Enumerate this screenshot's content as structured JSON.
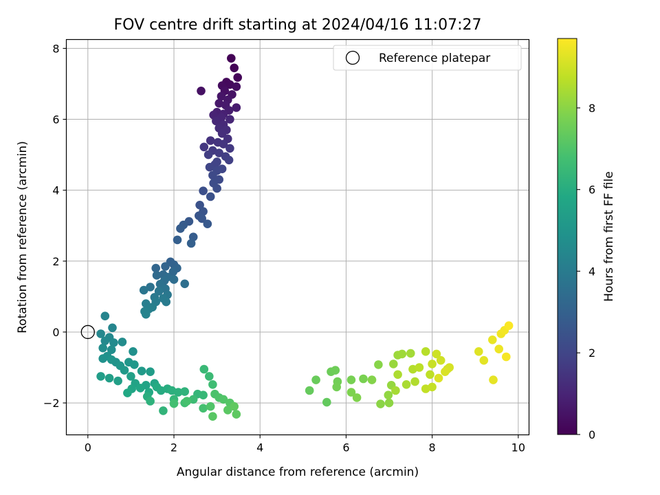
{
  "chart_data": {
    "type": "scatter",
    "title": "FOV centre drift starting at 2024/04/16 11:07:27",
    "xlabel": "Angular distance from reference (arcmin)",
    "ylabel": "Rotation from reference (arcmin)",
    "xlim": [
      -0.5,
      10.25
    ],
    "ylim": [
      -2.9,
      8.25
    ],
    "xticks": [
      0,
      2,
      4,
      6,
      8,
      10
    ],
    "yticks": [
      -2,
      0,
      2,
      4,
      6,
      8
    ],
    "grid": true,
    "legend": {
      "placement": "top-right",
      "entries": [
        "Reference platepar"
      ]
    },
    "reference_point": {
      "x": 0,
      "y": 0
    },
    "colorbar": {
      "label": "Hours from first FF file",
      "cmap": "viridis",
      "range": [
        0,
        9.7
      ],
      "ticks": [
        0,
        2,
        4,
        6,
        8
      ]
    },
    "points": [
      [
        3.33,
        7.72,
        0.05
      ],
      [
        3.4,
        7.45,
        0.1
      ],
      [
        3.48,
        7.18,
        0.15
      ],
      [
        3.22,
        7.05,
        0.2
      ],
      [
        3.3,
        6.98,
        0.25
      ],
      [
        3.12,
        6.95,
        0.3
      ],
      [
        3.45,
        6.92,
        0.35
      ],
      [
        3.18,
        6.8,
        0.4
      ],
      [
        2.63,
        6.8,
        0.45
      ],
      [
        3.35,
        6.7,
        0.5
      ],
      [
        3.1,
        6.65,
        0.55
      ],
      [
        3.25,
        6.55,
        0.6
      ],
      [
        3.05,
        6.45,
        0.65
      ],
      [
        3.2,
        6.4,
        0.7
      ],
      [
        3.45,
        6.33,
        0.75
      ],
      [
        3.28,
        6.25,
        0.8
      ],
      [
        3.0,
        6.2,
        0.85
      ],
      [
        3.15,
        6.15,
        0.9
      ],
      [
        2.92,
        6.12,
        0.95
      ],
      [
        3.1,
        6.05,
        1.0
      ],
      [
        3.3,
        6.0,
        1.05
      ],
      [
        2.98,
        5.95,
        1.1
      ],
      [
        3.15,
        5.85,
        1.15
      ],
      [
        3.05,
        5.75,
        1.2
      ],
      [
        3.22,
        5.7,
        1.25
      ],
      [
        3.12,
        5.6,
        1.3
      ],
      [
        3.25,
        5.45,
        1.35
      ],
      [
        2.85,
        5.4,
        1.4
      ],
      [
        3.02,
        5.35,
        1.45
      ],
      [
        3.15,
        5.3,
        1.5
      ],
      [
        2.7,
        5.22,
        1.55
      ],
      [
        3.3,
        5.18,
        1.6
      ],
      [
        2.9,
        5.12,
        1.65
      ],
      [
        3.05,
        5.05,
        1.7
      ],
      [
        2.8,
        5.0,
        1.75
      ],
      [
        3.2,
        4.95,
        1.8
      ],
      [
        3.28,
        4.85,
        1.85
      ],
      [
        3.0,
        4.8,
        1.9
      ],
      [
        2.95,
        4.72,
        1.95
      ],
      [
        2.83,
        4.65,
        2.0
      ],
      [
        3.12,
        4.6,
        2.05
      ],
      [
        3.0,
        4.55,
        2.1
      ],
      [
        2.9,
        4.42,
        2.15
      ],
      [
        3.05,
        4.3,
        2.2
      ],
      [
        2.92,
        4.2,
        2.25
      ],
      [
        3.0,
        4.05,
        2.3
      ],
      [
        2.68,
        3.98,
        2.35
      ],
      [
        2.85,
        3.82,
        2.4
      ],
      [
        2.6,
        3.58,
        2.45
      ],
      [
        2.68,
        3.4,
        2.5
      ],
      [
        2.58,
        3.28,
        2.55
      ],
      [
        2.65,
        3.2,
        2.6
      ],
      [
        2.35,
        3.12,
        2.65
      ],
      [
        2.78,
        3.05,
        2.7
      ],
      [
        2.22,
        3.02,
        2.75
      ],
      [
        2.15,
        2.92,
        2.8
      ],
      [
        2.45,
        2.68,
        2.85
      ],
      [
        2.08,
        2.6,
        2.9
      ],
      [
        2.4,
        2.5,
        2.95
      ],
      [
        1.92,
        1.98,
        3.0
      ],
      [
        2.0,
        1.9,
        3.05
      ],
      [
        1.8,
        1.85,
        3.1
      ],
      [
        2.07,
        1.8,
        3.15
      ],
      [
        1.58,
        1.8,
        3.2
      ],
      [
        1.98,
        1.7,
        3.25
      ],
      [
        1.75,
        1.62,
        3.3
      ],
      [
        1.6,
        1.6,
        3.35
      ],
      [
        1.85,
        1.55,
        3.4
      ],
      [
        2.0,
        1.48,
        3.45
      ],
      [
        1.78,
        1.45,
        3.5
      ],
      [
        2.25,
        1.36,
        3.55
      ],
      [
        1.68,
        1.35,
        3.6
      ],
      [
        1.45,
        1.27,
        3.65
      ],
      [
        1.8,
        1.22,
        3.7
      ],
      [
        1.3,
        1.18,
        3.75
      ],
      [
        1.65,
        1.15,
        3.8
      ],
      [
        1.85,
        1.05,
        3.85
      ],
      [
        1.55,
        0.98,
        3.9
      ],
      [
        1.75,
        0.95,
        3.95
      ],
      [
        1.82,
        0.85,
        4.0
      ],
      [
        1.58,
        0.85,
        4.05
      ],
      [
        1.35,
        0.8,
        4.1
      ],
      [
        1.5,
        0.7,
        4.15
      ],
      [
        1.42,
        0.65,
        4.2
      ],
      [
        1.32,
        0.58,
        4.25
      ],
      [
        1.35,
        0.5,
        4.3
      ],
      [
        0.4,
        0.45,
        4.35
      ],
      [
        0.57,
        0.12,
        4.4
      ],
      [
        0.3,
        -0.05,
        4.45
      ],
      [
        0.5,
        -0.15,
        4.5
      ],
      [
        0.4,
        -0.25,
        4.55
      ],
      [
        0.6,
        -0.3,
        4.6
      ],
      [
        0.8,
        -0.28,
        4.65
      ],
      [
        0.35,
        -0.45,
        4.7
      ],
      [
        0.55,
        -0.5,
        4.75
      ],
      [
        1.05,
        -0.55,
        4.8
      ],
      [
        0.45,
        -0.68,
        4.85
      ],
      [
        0.35,
        -0.75,
        4.9
      ],
      [
        0.65,
        -0.85,
        4.95
      ],
      [
        0.55,
        -0.78,
        5.0
      ],
      [
        0.95,
        -0.85,
        5.05
      ],
      [
        0.75,
        -0.95,
        5.1
      ],
      [
        1.08,
        -0.92,
        5.15
      ],
      [
        0.85,
        -1.08,
        5.2
      ],
      [
        1.25,
        -1.1,
        5.25
      ],
      [
        1.45,
        -1.12,
        5.3
      ],
      [
        0.3,
        -1.25,
        5.35
      ],
      [
        0.5,
        -1.3,
        5.4
      ],
      [
        0.7,
        -1.38,
        5.45
      ],
      [
        1.0,
        -1.25,
        5.5
      ],
      [
        1.1,
        -1.45,
        5.55
      ],
      [
        1.35,
        -1.5,
        5.6
      ],
      [
        1.55,
        -1.45,
        5.65
      ],
      [
        1.02,
        -1.6,
        5.7
      ],
      [
        1.22,
        -1.58,
        5.75
      ],
      [
        0.92,
        -1.72,
        5.8
      ],
      [
        1.42,
        -1.7,
        5.85
      ],
      [
        1.6,
        -1.55,
        5.9
      ],
      [
        1.7,
        -1.65,
        5.95
      ],
      [
        1.85,
        -1.6,
        6.0
      ],
      [
        1.38,
        -1.82,
        6.05
      ],
      [
        1.95,
        -1.65,
        6.1
      ],
      [
        2.1,
        -1.7,
        6.15
      ],
      [
        1.45,
        -1.95,
        6.2
      ],
      [
        2.25,
        -1.68,
        6.25
      ],
      [
        1.75,
        -2.22,
        6.3
      ],
      [
        2.55,
        -1.75,
        6.35
      ],
      [
        2.0,
        -1.9,
        6.4
      ],
      [
        2.68,
        -1.78,
        6.45
      ],
      [
        2.7,
        -1.05,
        6.5
      ],
      [
        2.82,
        -1.25,
        6.55
      ],
      [
        2.45,
        -1.9,
        6.6
      ],
      [
        2.9,
        -1.48,
        6.65
      ],
      [
        2.25,
        -2.0,
        6.7
      ],
      [
        2.0,
        -2.02,
        6.75
      ],
      [
        2.68,
        -2.15,
        6.8
      ],
      [
        2.3,
        -1.95,
        6.85
      ],
      [
        2.95,
        -1.75,
        6.9
      ],
      [
        3.05,
        -1.85,
        6.95
      ],
      [
        2.85,
        -2.1,
        7.0
      ],
      [
        3.15,
        -1.9,
        7.05
      ],
      [
        3.3,
        -2.0,
        7.1
      ],
      [
        2.9,
        -2.38,
        7.15
      ],
      [
        3.25,
        -2.2,
        7.2
      ],
      [
        3.45,
        -2.32,
        7.25
      ],
      [
        3.4,
        -2.1,
        7.3
      ],
      [
        5.55,
        -1.98,
        7.35
      ],
      [
        5.15,
        -1.65,
        7.4
      ],
      [
        5.3,
        -1.35,
        7.45
      ],
      [
        5.65,
        -1.12,
        7.5
      ],
      [
        5.75,
        -1.08,
        7.55
      ],
      [
        5.8,
        -1.4,
        7.6
      ],
      [
        5.78,
        -1.55,
        7.65
      ],
      [
        6.12,
        -1.35,
        7.7
      ],
      [
        6.4,
        -1.32,
        7.75
      ],
      [
        6.12,
        -1.7,
        7.8
      ],
      [
        6.25,
        -1.85,
        7.85
      ],
      [
        6.6,
        -1.35,
        7.9
      ],
      [
        6.75,
        -0.92,
        7.95
      ],
      [
        6.8,
        -2.03,
        8.0
      ],
      [
        7.0,
        -2.0,
        8.05
      ],
      [
        6.98,
        -1.78,
        8.1
      ],
      [
        7.05,
        -1.5,
        8.15
      ],
      [
        7.1,
        -0.9,
        8.2
      ],
      [
        7.2,
        -0.65,
        8.25
      ],
      [
        7.3,
        -0.62,
        8.3
      ],
      [
        7.5,
        -0.6,
        8.35
      ],
      [
        7.15,
        -1.65,
        8.4
      ],
      [
        7.4,
        -1.48,
        8.45
      ],
      [
        7.2,
        -1.2,
        8.5
      ],
      [
        7.6,
        -1.4,
        8.55
      ],
      [
        7.55,
        -1.05,
        8.6
      ],
      [
        7.85,
        -0.55,
        8.65
      ],
      [
        7.7,
        -1.0,
        8.7
      ],
      [
        7.95,
        -1.2,
        8.75
      ],
      [
        7.85,
        -1.6,
        8.8
      ],
      [
        8.0,
        -1.55,
        8.85
      ],
      [
        8.0,
        -0.9,
        8.9
      ],
      [
        8.1,
        -0.62,
        8.95
      ],
      [
        8.2,
        -0.8,
        9.0
      ],
      [
        8.35,
        -1.05,
        9.05
      ],
      [
        8.4,
        -1.0,
        9.1
      ],
      [
        8.3,
        -1.12,
        9.15
      ],
      [
        8.15,
        -1.3,
        9.2
      ],
      [
        9.08,
        -0.55,
        9.25
      ],
      [
        9.2,
        -0.8,
        9.3
      ],
      [
        9.42,
        -1.35,
        9.35
      ],
      [
        9.4,
        -0.22,
        9.4
      ],
      [
        9.55,
        -0.48,
        9.45
      ],
      [
        9.6,
        -0.05,
        9.5
      ],
      [
        9.68,
        0.05,
        9.55
      ],
      [
        9.72,
        -0.7,
        9.6
      ],
      [
        9.78,
        0.18,
        9.65
      ]
    ]
  }
}
